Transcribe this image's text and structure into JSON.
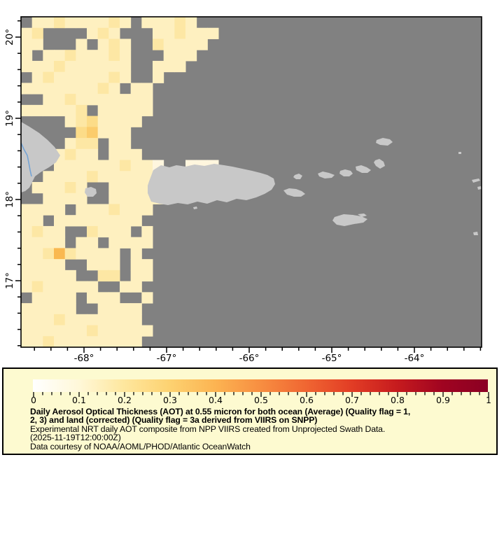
{
  "figure": {
    "kind": "satellite-data-map",
    "region": "Puerto Rico / Virgin Islands / eastern Hispaniola"
  },
  "map": {
    "colors": {
      "ocean_no_data": "#818181",
      "land": "#C8C8C8",
      "river": "#74A3D4",
      "border": "#000000"
    },
    "lat_tick_labels": [
      "20°",
      "19°",
      "18°",
      "17°"
    ],
    "lon_tick_labels": [
      "-68°",
      "-67°",
      "-66°",
      "-65°",
      "-64°"
    ]
  },
  "chart_data": {
    "type": "heatmap",
    "title": "Daily Aerosol Optical Thickness (AOT) at 0.55 micron for both ocean (Average) (Quality flag = 1, 2, 3) and land (corrected) (Quality flag = 3a derived from VIIRS on SNPP)",
    "variable": "Aerosol Optical Thickness (AOT) at 0.55 micron",
    "value_range": [
      0,
      1
    ],
    "x_axis": {
      "label": "longitude",
      "tick_labels": [
        "-68°",
        "-67°",
        "-66°",
        "-65°",
        "-64°"
      ]
    },
    "y_axis": {
      "label": "latitude",
      "tick_labels": [
        "20°",
        "19°",
        "18°",
        "17°"
      ]
    },
    "colorbar": {
      "min": 0,
      "max": 1,
      "tick_labels": [
        "0",
        "0.1",
        "0.2",
        "0.3",
        "0.4",
        "0.5",
        "0.6",
        "0.7",
        "0.8",
        "0.9",
        "1"
      ],
      "stops": [
        {
          "pos": 0.0,
          "color": "#FFFFFF"
        },
        {
          "pos": 0.1,
          "color": "#FFF8D9"
        },
        {
          "pos": 0.2,
          "color": "#FEE79E"
        },
        {
          "pos": 0.3,
          "color": "#FDD271"
        },
        {
          "pos": 0.4,
          "color": "#FCB452"
        },
        {
          "pos": 0.5,
          "color": "#F78E41"
        },
        {
          "pos": 0.6,
          "color": "#F06632"
        },
        {
          "pos": 0.7,
          "color": "#E23D25"
        },
        {
          "pos": 0.8,
          "color": "#C61B1E"
        },
        {
          "pos": 0.9,
          "color": "#A00421"
        },
        {
          "pos": 1.0,
          "color": "#8B0023"
        }
      ]
    },
    "grid": {
      "cols": 42,
      "rows": 30,
      "no_data_char": ".",
      "value_of_char": {
        "a": 0.05,
        "b": 0.1,
        "c": 0.14,
        "d": 0.18,
        "e": 0.23,
        "f": 0.3
      },
      "color_of_char": {
        "a": "#FFF6DE",
        "b": "#FEF0C0",
        "c": "#FDE7A4",
        "d": "#FCDC88",
        "e": "#FBCC6C",
        "f": "#F9B850"
      },
      "rows_encoded": [
        ".bbcbbbbcb.bbbcb..........................",
        "bc....bcb...bbcbbb........................",
        "bb...b.bcb..cbbbb.........................",
        "b.bbcbbbcb...bbb..........................",
        "bbbcbbbbbb..bbb...........................",
        ".bcbbbbbcb..b.............................",
        "bbbbbbbcb.bb..............................",
        "..bbcbbbbbbb..............................",
        "bbbbbc.bbbbb..............................",
        "....bcdbbbb...............................",
        ".....debbb................................",
        "....bcc.bb................................",
        "..bbcbb.bbb...............................",
        "...bbbbbbcbba..aaa........................",
        "..bbbbcbbbbbbb............................",
        ".bbbcb..bbbbcb............................",
        "..bbbb..bbbbb.............................",
        "bbbb.bbbcbbb..............................",
        "bb.bbbbbbbb...............................",
        "bcbb..cbbb.b..............................",
        "bbbb.bb.bbbb..............................",
        "bbcfcbbbb.b...............................",
        "bbbb..bbb.bb..............................",
        "bbbbb..cc.bb..............................",
        "bcbbbbb..bb...............................",
        ".bbbb.bbb..b..............................",
        "bbbbb..bbbb...............................",
        "bbbcbbbbbbb...............................",
        "bbbbbbcbbbbb..............................",
        "bbcbbbbbbbb..............................."
      ]
    },
    "land_features": [
      {
        "name": "hispaniola-east-coast",
        "points": [
          [
            0,
            150
          ],
          [
            12,
            157
          ],
          [
            26,
            166
          ],
          [
            38,
            176
          ],
          [
            48,
            186
          ],
          [
            56,
            198
          ],
          [
            50,
            208
          ],
          [
            40,
            215
          ],
          [
            28,
            222
          ],
          [
            20,
            228
          ],
          [
            16,
            236
          ],
          [
            12,
            244
          ],
          [
            6,
            249
          ],
          [
            0,
            251
          ]
        ]
      },
      {
        "name": "mona-island",
        "points": [
          [
            92,
            245
          ],
          [
            100,
            243
          ],
          [
            107,
            246
          ],
          [
            108,
            252
          ],
          [
            103,
            257
          ],
          [
            95,
            257
          ],
          [
            91,
            251
          ]
        ]
      },
      {
        "name": "puerto-rico",
        "points": [
          [
            183,
            235
          ],
          [
            189,
            219
          ],
          [
            200,
            212
          ],
          [
            212,
            215
          ],
          [
            222,
            212
          ],
          [
            235,
            214
          ],
          [
            248,
            211
          ],
          [
            262,
            213
          ],
          [
            276,
            210
          ],
          [
            290,
            212
          ],
          [
            302,
            214
          ],
          [
            316,
            217
          ],
          [
            330,
            220
          ],
          [
            342,
            223
          ],
          [
            352,
            226
          ],
          [
            361,
            231
          ],
          [
            363,
            239
          ],
          [
            358,
            247
          ],
          [
            348,
            253
          ],
          [
            336,
            258
          ],
          [
            322,
            262
          ],
          [
            308,
            260
          ],
          [
            294,
            265
          ],
          [
            280,
            262
          ],
          [
            266,
            267
          ],
          [
            252,
            264
          ],
          [
            238,
            268
          ],
          [
            224,
            266
          ],
          [
            210,
            269
          ],
          [
            198,
            267
          ],
          [
            186,
            264
          ],
          [
            181,
            252
          ],
          [
            181,
            241
          ]
        ]
      },
      {
        "name": "vieques",
        "points": [
          [
            375,
            248
          ],
          [
            383,
            245
          ],
          [
            393,
            246
          ],
          [
            401,
            249
          ],
          [
            406,
            253
          ],
          [
            400,
            257
          ],
          [
            390,
            257
          ],
          [
            380,
            254
          ]
        ]
      },
      {
        "name": "culebra",
        "points": [
          [
            391,
            226
          ],
          [
            397,
            224
          ],
          [
            402,
            227
          ],
          [
            399,
            232
          ],
          [
            393,
            232
          ],
          [
            389,
            229
          ]
        ]
      },
      {
        "name": "st-thomas",
        "points": [
          [
            424,
            224
          ],
          [
            431,
            221
          ],
          [
            440,
            223
          ],
          [
            448,
            226
          ],
          [
            444,
            230
          ],
          [
            434,
            231
          ],
          [
            426,
            228
          ]
        ]
      },
      {
        "name": "st-john",
        "points": [
          [
            456,
            220
          ],
          [
            463,
            218
          ],
          [
            471,
            220
          ],
          [
            474,
            224
          ],
          [
            469,
            228
          ],
          [
            461,
            228
          ],
          [
            455,
            224
          ]
        ]
      },
      {
        "name": "tortola",
        "points": [
          [
            478,
            214
          ],
          [
            486,
            212
          ],
          [
            494,
            215
          ],
          [
            500,
            219
          ],
          [
            495,
            223
          ],
          [
            487,
            223
          ],
          [
            479,
            219
          ]
        ]
      },
      {
        "name": "virgin-gorda",
        "points": [
          [
            506,
            205
          ],
          [
            512,
            203
          ],
          [
            518,
            207
          ],
          [
            520,
            213
          ],
          [
            513,
            217
          ],
          [
            507,
            213
          ],
          [
            504,
            208
          ]
        ]
      },
      {
        "name": "anegada",
        "points": [
          [
            508,
            176
          ],
          [
            517,
            173
          ],
          [
            527,
            175
          ],
          [
            531,
            179
          ],
          [
            524,
            184
          ],
          [
            513,
            183
          ],
          [
            507,
            180
          ]
        ]
      },
      {
        "name": "st-croix",
        "points": [
          [
            448,
            286
          ],
          [
            461,
            282
          ],
          [
            474,
            283
          ],
          [
            486,
            285
          ],
          [
            495,
            289
          ],
          [
            489,
            294
          ],
          [
            476,
            296
          ],
          [
            462,
            299
          ],
          [
            451,
            297
          ],
          [
            445,
            291
          ]
        ]
      },
      {
        "name": "st-croix-east-point",
        "points": [
          [
            481,
            282
          ],
          [
            490,
            281
          ],
          [
            494,
            284
          ],
          [
            487,
            286
          ]
        ]
      },
      {
        "name": "caja-de-muertos-islet",
        "points": [
          [
            246,
            272
          ],
          [
            251,
            271
          ],
          [
            252,
            274
          ],
          [
            247,
            275
          ]
        ]
      },
      {
        "name": "sombrero-islet",
        "points": [
          [
            625,
            193
          ],
          [
            629,
            193
          ],
          [
            629,
            196
          ],
          [
            625,
            196
          ]
        ]
      },
      {
        "name": "anguilla-islet",
        "points": [
          [
            644,
            233
          ],
          [
            654,
            231
          ],
          [
            656,
            234
          ],
          [
            646,
            237
          ]
        ]
      },
      {
        "name": "st-martin-islet",
        "points": [
          [
            652,
            243
          ],
          [
            657,
            242
          ],
          [
            658,
            246
          ],
          [
            653,
            247
          ]
        ]
      },
      {
        "name": "saba-islet",
        "points": [
          [
            646,
            308
          ],
          [
            652,
            307
          ],
          [
            653,
            312
          ],
          [
            647,
            312
          ]
        ]
      }
    ],
    "river": {
      "name": "yuna-river",
      "points": [
        [
          0,
          180
        ],
        [
          4,
          189
        ],
        [
          9,
          198
        ],
        [
          11,
          208
        ],
        [
          13,
          219
        ],
        [
          15,
          228
        ]
      ]
    }
  },
  "legend": {
    "box_bg": "#FDFAD0",
    "caption_bold_lines": [
      "Daily Aerosol Optical Thickness (AOT) at 0.55 micron for both ocean (Average) (Quality flag = 1,",
      "2, 3) and land (corrected) (Quality flag = 3a derived from VIIRS on SNPP)"
    ],
    "caption_lines": [
      "Experimental NRT daily AOT composite from NPP VIIRS created from Unprojected Swath Data.",
      "(2025-11-19T12:00:00Z)",
      "Data courtesy of NOAA/AOML/PHOD/Atlantic OceanWatch"
    ]
  }
}
